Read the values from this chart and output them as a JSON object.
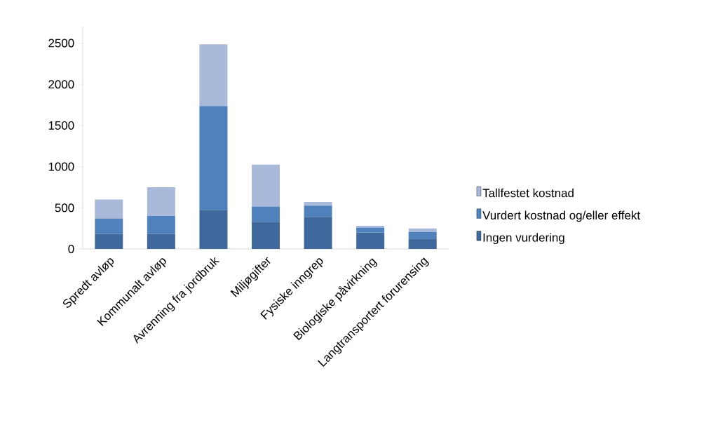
{
  "chart_data": {
    "type": "bar",
    "stacked": true,
    "categories": [
      "Spredt avløp",
      "Kommunalt avløp",
      "Avrenning fra jordbruk",
      "Miljøgifter",
      "Fysiske inngrep",
      "Biologiske påvirkning",
      "Langtransportert forurensing"
    ],
    "series": [
      {
        "name": "Ingen vurdering",
        "color": "#3f689c",
        "values": [
          180,
          180,
          475,
          330,
          390,
          200,
          125
        ]
      },
      {
        "name": "Vurdert kostnad og/eller effekt",
        "color": "#4f81bd",
        "values": [
          190,
          220,
          1260,
          185,
          135,
          60,
          80
        ]
      },
      {
        "name": "Tallfestet kostnad",
        "color": "#a9b9d9",
        "values": [
          230,
          350,
          750,
          510,
          45,
          20,
          45
        ]
      }
    ],
    "ylim": [
      0,
      2700
    ],
    "yticks": [
      0,
      500,
      1000,
      1500,
      2000,
      2500
    ],
    "legend": "right"
  }
}
